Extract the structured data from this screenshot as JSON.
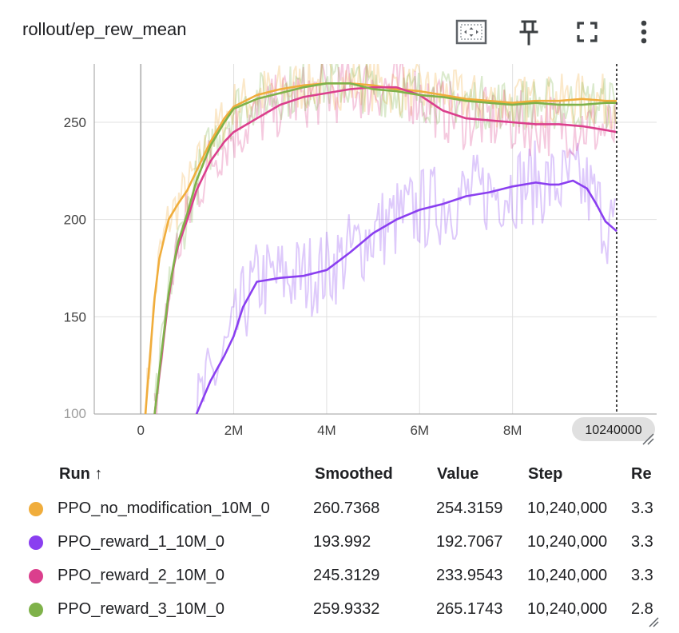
{
  "title": "rollout/ep_rew_mean",
  "toolbar": {
    "fit_icon": "fit-domain-icon",
    "pin_icon": "pin-icon",
    "fullscreen_icon": "fullscreen-icon",
    "more_icon": "more-vert-icon"
  },
  "chart_data": {
    "type": "line",
    "xlim": [
      -1000000,
      11100000
    ],
    "ylim": [
      100,
      280
    ],
    "x_ticks": [
      0,
      2000000,
      4000000,
      6000000,
      8000000
    ],
    "x_tick_labels": [
      "0",
      "2M",
      "4M",
      "6M",
      "8M"
    ],
    "y_ticks": [
      150,
      200,
      250
    ],
    "y_tick_labels": [
      "150",
      "200",
      "250"
    ],
    "y_partial_tick_label": "100",
    "hover_step_label": "10240000",
    "grid": true,
    "series": [
      {
        "name": "PPO_no_modification_10M_0",
        "color": "#f0ad3c",
        "x": [
          100000,
          200000,
          300000,
          400000,
          500000,
          600000,
          800000,
          1000000,
          1200000,
          1500000,
          1800000,
          2000000,
          2500000,
          3000000,
          3500000,
          4000000,
          4500000,
          5000000,
          5500000,
          6000000,
          6500000,
          7000000,
          7500000,
          8000000,
          8500000,
          9000000,
          9500000,
          10000000,
          10240000
        ],
        "y": [
          100,
          130,
          160,
          180,
          190,
          200,
          208,
          215,
          225,
          240,
          252,
          258,
          264,
          267,
          269,
          270,
          270,
          269,
          267,
          266,
          264,
          262,
          261,
          260,
          261,
          261,
          262,
          261,
          261
        ]
      },
      {
        "name": "PPO_reward_1_10M_0",
        "color": "#8a3ff0",
        "x": [
          1200000,
          1500000,
          1800000,
          2000000,
          2200000,
          2500000,
          3000000,
          3500000,
          4000000,
          4500000,
          5000000,
          5500000,
          6000000,
          6500000,
          7000000,
          7500000,
          8000000,
          8500000,
          8800000,
          9000000,
          9300000,
          9600000,
          9800000,
          10000000,
          10240000
        ],
        "y": [
          100,
          117,
          130,
          140,
          155,
          168,
          170,
          171,
          174,
          183,
          193,
          200,
          205,
          208,
          212,
          214,
          217,
          219,
          218,
          218,
          220,
          216,
          208,
          199,
          194
        ]
      },
      {
        "name": "PPO_reward_2_10M_0",
        "color": "#db3f8d",
        "x": [
          300000,
          400000,
          500000,
          600000,
          700000,
          800000,
          1000000,
          1200000,
          1500000,
          1800000,
          2000000,
          2500000,
          3000000,
          3500000,
          4000000,
          4500000,
          5000000,
          5500000,
          6000000,
          6500000,
          7000000,
          7500000,
          8000000,
          8500000,
          9000000,
          9500000,
          10000000,
          10240000
        ],
        "y": [
          100,
          120,
          140,
          160,
          175,
          186,
          200,
          215,
          230,
          240,
          245,
          252,
          259,
          263,
          265,
          267,
          268,
          268,
          264,
          256,
          252,
          251,
          250,
          249,
          249,
          248,
          246,
          245
        ]
      },
      {
        "name": "PPO_reward_3_10M_0",
        "color": "#7fb24a",
        "x": [
          300000,
          400000,
          500000,
          600000,
          700000,
          800000,
          1000000,
          1200000,
          1500000,
          1800000,
          2000000,
          2500000,
          3000000,
          3500000,
          4000000,
          4500000,
          5000000,
          5500000,
          6000000,
          6500000,
          7000000,
          7500000,
          8000000,
          8500000,
          9000000,
          9500000,
          10000000,
          10240000
        ],
        "y": [
          100,
          122,
          142,
          162,
          176,
          188,
          203,
          220,
          238,
          250,
          257,
          262,
          265,
          268,
          270,
          270,
          267,
          266,
          264,
          263,
          261,
          260,
          259,
          260,
          259,
          259,
          260,
          260
        ]
      }
    ]
  },
  "table": {
    "headers": {
      "run": "Run ↑",
      "smoothed": "Smoothed",
      "value": "Value",
      "step": "Step",
      "relative": "Re"
    },
    "rows": [
      {
        "run": "PPO_no_modification_10M_0",
        "smoothed": "260.7368",
        "value": "254.3159",
        "step": "10,240,000",
        "relative": "3.3",
        "color": "#f0ad3c"
      },
      {
        "run": "PPO_reward_1_10M_0",
        "smoothed": "193.992",
        "value": "192.7067",
        "step": "10,240,000",
        "relative": "3.3",
        "color": "#8a3ff0"
      },
      {
        "run": "PPO_reward_2_10M_0",
        "smoothed": "245.3129",
        "value": "233.9543",
        "step": "10,240,000",
        "relative": "3.3",
        "color": "#db3f8d"
      },
      {
        "run": "PPO_reward_3_10M_0",
        "smoothed": "259.9332",
        "value": "265.1743",
        "step": "10,240,000",
        "relative": "2.8",
        "color": "#7fb24a"
      }
    ]
  }
}
